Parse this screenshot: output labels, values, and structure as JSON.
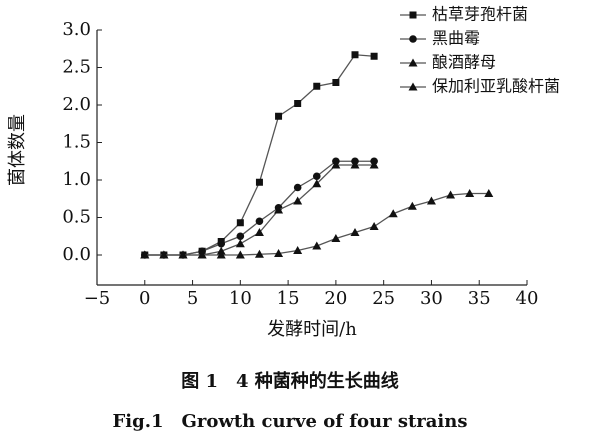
{
  "chart_data": {
    "type": "line",
    "ylabel": "菌体数量",
    "xlabel": "发酵时间/h",
    "caption_cn": "图 1　4 种菌种的生长曲线",
    "caption_en": "Fig.1　Growth curve of four strains",
    "xlim": [
      -5,
      40
    ],
    "xticks": [
      {
        "value": -5,
        "label": "−5"
      },
      0,
      5,
      10,
      15,
      20,
      25,
      30,
      35,
      40
    ],
    "ylim": [
      -0.4,
      3.0
    ],
    "yticks": [
      {
        "value": 0,
        "label": "0.0"
      },
      0.5,
      {
        "value": 1,
        "label": "1.0"
      },
      1.5,
      {
        "value": 2,
        "label": "2.0"
      },
      2.5,
      {
        "value": 3,
        "label": "3.0"
      }
    ],
    "legend": "top-right",
    "series": [
      {
        "name": "枯草芽孢杆菌",
        "color": "#555555",
        "marker": "square",
        "x": [
          0,
          2,
          4,
          6,
          8,
          10,
          12,
          14,
          16,
          18,
          20,
          22,
          24
        ],
        "values": [
          0,
          0,
          0,
          0.05,
          0.18,
          0.43,
          0.97,
          1.85,
          2.02,
          2.25,
          2.3,
          2.67,
          2.65
        ]
      },
      {
        "name": "黑曲霉",
        "color": "#555555",
        "marker": "circle",
        "x": [
          0,
          2,
          4,
          6,
          8,
          10,
          12,
          14,
          16,
          18,
          20,
          22,
          24
        ],
        "values": [
          0,
          0,
          0,
          0.05,
          0.15,
          0.25,
          0.45,
          0.63,
          0.9,
          1.05,
          1.25,
          1.25,
          1.25
        ]
      },
      {
        "name": "酿酒酵母",
        "color": "#555555",
        "marker": "triangle",
        "x": [
          0,
          2,
          4,
          6,
          8,
          10,
          12,
          14,
          16,
          18,
          20,
          22,
          24
        ],
        "values": [
          0,
          0,
          0,
          0,
          0.05,
          0.15,
          0.3,
          0.6,
          0.72,
          0.95,
          1.2,
          1.2,
          1.2
        ]
      },
      {
        "name": "保加利亚乳酸杆菌",
        "color": "#555555",
        "marker": "triangle",
        "x": [
          0,
          2,
          4,
          6,
          8,
          10,
          12,
          14,
          16,
          18,
          20,
          22,
          24,
          26,
          28,
          30,
          32,
          34,
          36
        ],
        "values": [
          0,
          0,
          0,
          0,
          0,
          0,
          0.01,
          0.02,
          0.06,
          0.12,
          0.22,
          0.3,
          0.38,
          0.55,
          0.65,
          0.72,
          0.8,
          0.82,
          0.82
        ]
      }
    ]
  }
}
